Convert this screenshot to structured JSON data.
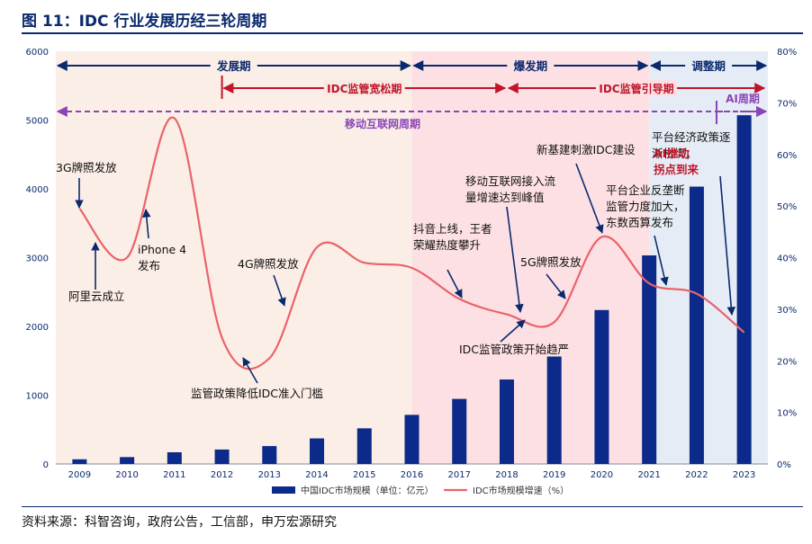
{
  "figure": {
    "title": "图 11：IDC 行业发展历经三轮周期",
    "source": "资料来源：科智咨询，政府公告，工信部，申万宏源研究"
  },
  "chart_data": {
    "type": "bar+line",
    "categories": [
      "2009",
      "2010",
      "2011",
      "2012",
      "2013",
      "2014",
      "2015",
      "2016",
      "2017",
      "2018",
      "2019",
      "2020",
      "2021",
      "2022",
      "2023"
    ],
    "series": [
      {
        "name": "中国IDC市场规模（单位：亿元）",
        "type": "bar",
        "axis": "left",
        "color": "#0b2a8a",
        "values": [
          68,
          100,
          170,
          210,
          260,
          372,
          518,
          714,
          946,
          1228,
          1562,
          2238,
          3032,
          4032,
          5070
        ]
      },
      {
        "name": "IDC市场规模增速（%）",
        "type": "line",
        "axis": "right",
        "color": "#e8646a",
        "values": [
          49.5,
          40.0,
          67.0,
          24.5,
          20.5,
          42.0,
          39.0,
          38.0,
          32.0,
          29.0,
          27.5,
          44.0,
          35.0,
          33.0,
          25.5
        ]
      }
    ],
    "y_left": {
      "min": 0,
      "max": 6000,
      "ticks": [
        "0",
        "1000",
        "2000",
        "3000",
        "4000",
        "5000",
        "6000"
      ]
    },
    "y_right": {
      "min": 0,
      "max": 80,
      "ticks": [
        "0%",
        "10%",
        "20%",
        "30%",
        "40%",
        "50%",
        "60%",
        "70%",
        "80%"
      ]
    },
    "periods": [
      {
        "label": "发展期",
        "from": "2009",
        "to": "2016",
        "bg": "#fbeee6"
      },
      {
        "label": "爆发期",
        "from": "2016",
        "to": "2021",
        "bg": "#fde0e4"
      },
      {
        "label": "调整期",
        "from": "2021",
        "to": "2023",
        "bg": "#e6ecf5"
      }
    ],
    "policy_periods": [
      {
        "label": "IDC监管宽松期",
        "from": "2012",
        "to": "2018",
        "color": "#c0152a"
      },
      {
        "label": "IDC监管引导期",
        "from": "2018",
        "to": "2023",
        "color": "#c0152a"
      }
    ],
    "mobile_period": {
      "label": "移动互联网周期",
      "color": "#8a44b8"
    },
    "ai_period": {
      "label": "AI周期",
      "color": "#8a44b8"
    },
    "annotations": [
      "3G牌照发放",
      "阿里云成立",
      "iPhone 4\n发布",
      "监管政策降低IDC准入门槛",
      "4G牌照发放",
      "抖音上线，王者\n荣耀热度攀升",
      "移动互联网接入流\n量增速达到峰值",
      "5G牌照发放",
      "IDC监管政策开始趋严",
      "新基建刺激IDC建设",
      "平台企业反垄断\n监管力度加大，\n东数西算发布",
      "平台经济政策逐\n渐松绑；",
      "AI推动\n拐点到来"
    ],
    "colors": {
      "bar": "#0b2a8a",
      "line": "#e8646a",
      "axis_text": "#0b2a6e",
      "title": "#0b2a6e"
    }
  }
}
